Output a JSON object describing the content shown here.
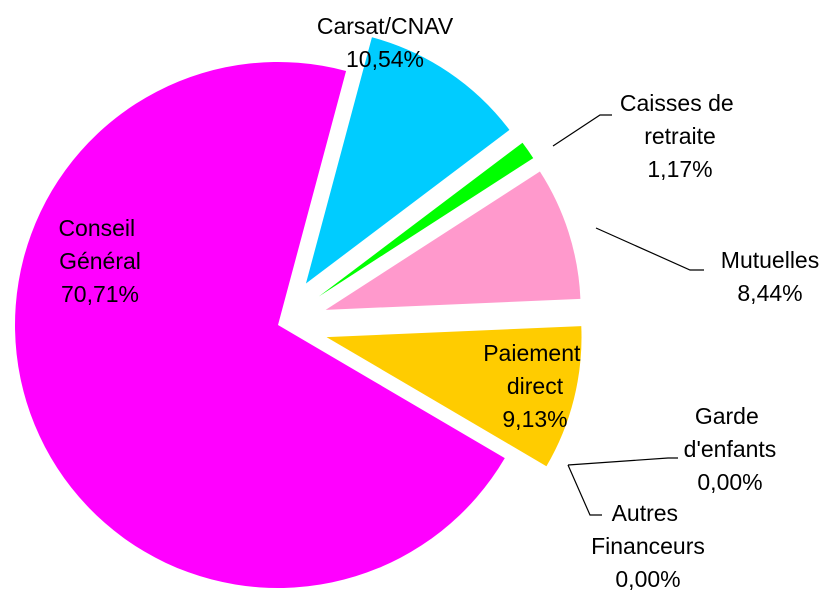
{
  "chart_data": {
    "type": "pie",
    "categories": [
      "Carsat/CNAV",
      "Caisses de retraite",
      "Mutuelles",
      "Paiement direct",
      "Garde d'enfants",
      "Autres Financeurs",
      "Conseil Général"
    ],
    "values": [
      10.54,
      1.17,
      8.44,
      9.13,
      0.0,
      0.0,
      70.71
    ],
    "value_labels": [
      "10,54%",
      "1,17%",
      "8,44%",
      "9,13%",
      "0,00%",
      "0,00%",
      "70,71%"
    ],
    "colors": [
      "#00ccff",
      "#00ff00",
      "#ff99cc",
      "#ffcc00",
      "#993366",
      "#ffffcc",
      "#ff00ff"
    ]
  }
}
